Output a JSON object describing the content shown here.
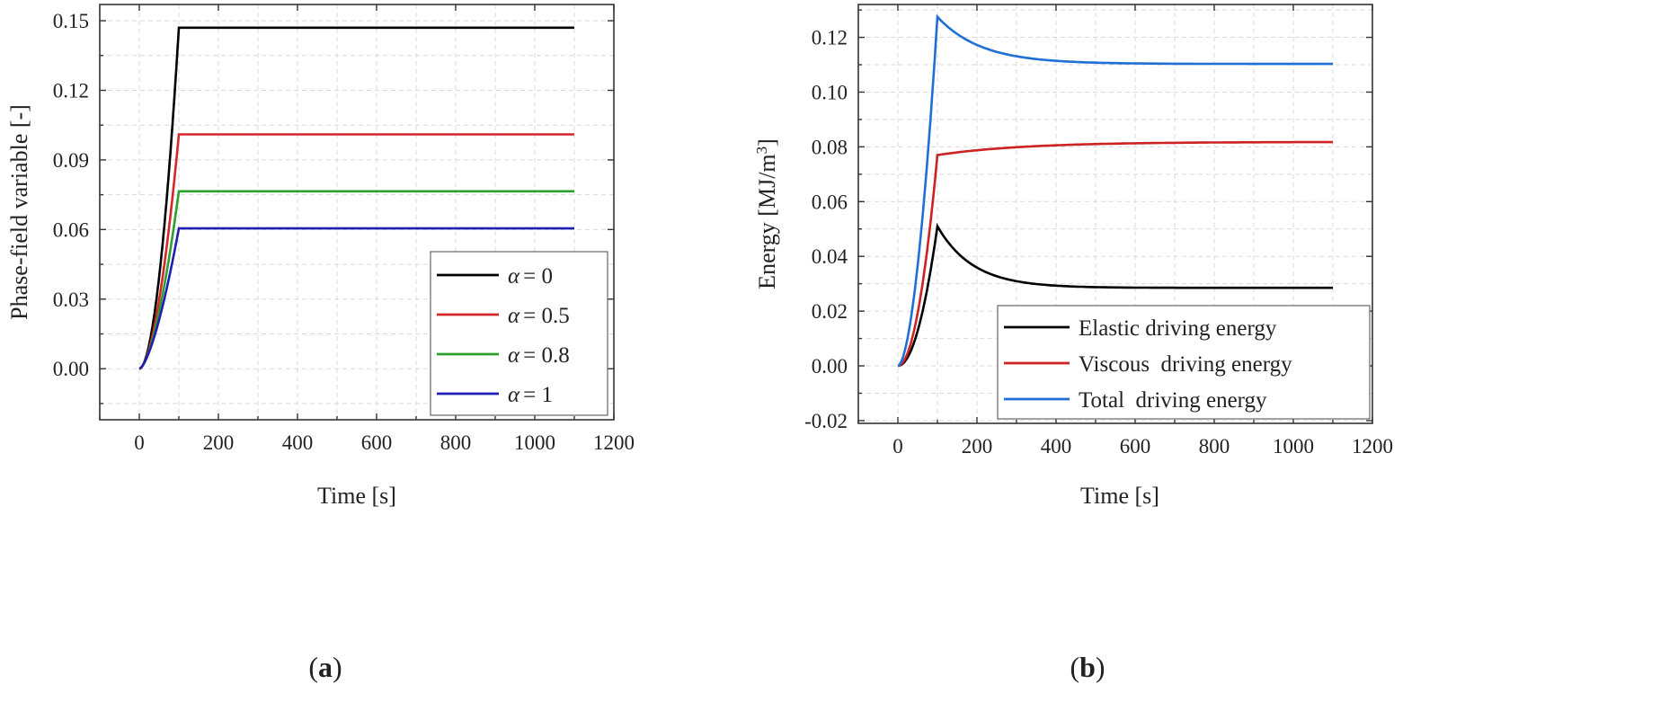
{
  "panels": {
    "a": {
      "label_open": "(",
      "label_letter": "a",
      "label_close": ")"
    },
    "b": {
      "label_open": "(",
      "label_letter": "b",
      "label_close": ")"
    }
  },
  "chart_data": [
    {
      "type": "line",
      "title": "",
      "xlabel": "Time [s]",
      "ylabel": "Phase-field variable [-]",
      "xlim": [
        -100,
        1200
      ],
      "ylim": [
        -0.022,
        0.157
      ],
      "xticks": [
        0,
        200,
        400,
        600,
        800,
        1000,
        1200
      ],
      "xtick_labels": [
        "0",
        "200",
        "400",
        "600",
        "800",
        "1000",
        "1200"
      ],
      "yticks": [
        0.0,
        0.03,
        0.06,
        0.09,
        0.12,
        0.15
      ],
      "ytick_labels": [
        "0.00",
        "0.03",
        "0.06",
        "0.09",
        "0.12",
        "0.15"
      ],
      "grid": true,
      "legend_position": "lower-right",
      "series": [
        {
          "name": "α = 0",
          "legend_var": "α",
          "legend_val": "= 0",
          "color": "#000000",
          "ramp_end": 100,
          "plateau": 0.147,
          "x_end": 1100
        },
        {
          "name": "α = 0.5",
          "legend_var": "α",
          "legend_val": "= 0.5",
          "color": "#d62728",
          "ramp_end": 100,
          "plateau": 0.101,
          "x_end": 1100
        },
        {
          "name": "α = 0.8",
          "legend_var": "α",
          "legend_val": "= 0.8",
          "color": "#2ca02c",
          "ramp_end": 100,
          "plateau": 0.0765,
          "x_end": 1100
        },
        {
          "name": "α = 1",
          "legend_var": "α",
          "legend_val": "= 1",
          "color": "#1f1fb4",
          "ramp_end": 100,
          "plateau": 0.0605,
          "x_end": 1100
        }
      ]
    },
    {
      "type": "line",
      "title": "",
      "xlabel": "Time [s]",
      "ylabel_main": "Energy [MJ/m",
      "ylabel_sup": "3",
      "ylabel_close": "]",
      "xlim": [
        -100,
        1200
      ],
      "ylim": [
        -0.021,
        0.132
      ],
      "xticks": [
        0,
        200,
        400,
        600,
        800,
        1000,
        1200
      ],
      "xtick_labels": [
        "0",
        "200",
        "400",
        "600",
        "800",
        "1000",
        "1200"
      ],
      "yticks": [
        -0.02,
        0.0,
        0.02,
        0.04,
        0.06,
        0.08,
        0.1,
        0.12
      ],
      "ytick_labels": [
        "-0.02",
        "0.00",
        "0.02",
        "0.04",
        "0.06",
        "0.08",
        "0.10",
        "0.12"
      ],
      "grid": true,
      "legend_position": "lower-right",
      "series": [
        {
          "name": "Elastic driving energy",
          "color": "#000000",
          "peak_x": 100,
          "peak": 0.051,
          "final": 0.0285,
          "tau": 90,
          "x_end": 1100
        },
        {
          "name": "Viscous  driving energy",
          "color": "#cc2222",
          "peak_x": 100,
          "peak": 0.077,
          "final": 0.0818,
          "tau": 220,
          "x_end": 1100
        },
        {
          "name": "Total  driving energy",
          "color": "#1f6fd6",
          "peak_x": 100,
          "peak": 0.1275,
          "final": 0.1103,
          "tau": 110,
          "x_end": 1100
        }
      ]
    }
  ]
}
